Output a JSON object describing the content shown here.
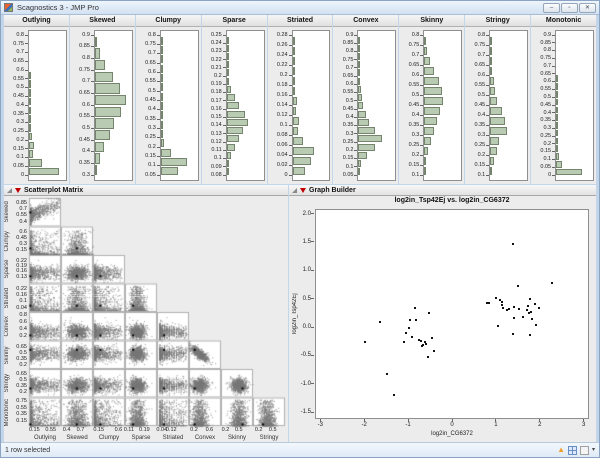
{
  "window": {
    "title": "Scagnostics 3 - JMP Pro",
    "controls": {
      "minimize": "–",
      "maximize": "▫",
      "close": "✕"
    },
    "control_icons": [
      "minimize-icon",
      "maximize-icon",
      "close-icon"
    ]
  },
  "status_bar": {
    "text": "1 row selected",
    "icons": [
      "caret-up-icon",
      "grid-view-icon",
      "dropdown-box-icon",
      "dropdown-caret-icon"
    ],
    "dropdown_caret": "▾",
    "up_arrow": "▲"
  },
  "panel_header_icons": [
    "disclosure-triangle-icon",
    "red-triangle-menu-icon"
  ],
  "colors": {
    "histogram_bar_fill": "#b9cbb2",
    "histogram_bar_stroke": "#75846d",
    "matrix_point": "#828282",
    "selected_point": "#000000",
    "graph_point": "#111111",
    "window_frame": "#c3d5e8",
    "red_triangle": "#c00000"
  },
  "chart_data": [
    {
      "type": "bar",
      "role": "histogram-strip",
      "orientation": "horizontal-bars-vertical-axis",
      "panels": [
        {
          "name": "Outlying",
          "ticks": [
            "0.8",
            "0.75",
            "0.7",
            "0.65",
            "0.6",
            "0.55",
            "0.5",
            "0.45",
            "0.4",
            "0.35",
            "0.3",
            "0.25",
            "0.2",
            "0.15",
            "0.1",
            "0.05",
            "0"
          ],
          "bar_rel_widths": [
            0,
            0,
            0,
            0,
            0.01,
            0.01,
            0.02,
            0.03,
            0.04,
            0.05,
            0.07,
            0.1,
            0.14,
            0.12,
            0.38,
            0.9
          ]
        },
        {
          "name": "Skewed",
          "ticks": [
            "0.9",
            "0.85",
            "0.8",
            "0.75",
            "0.7",
            "0.65",
            "0.6",
            "0.55",
            "0.5",
            "0.45",
            "0.4",
            "0.35",
            "0.3"
          ],
          "bar_rel_widths": [
            0.03,
            0.15,
            0.3,
            0.55,
            0.75,
            0.95,
            0.78,
            0.58,
            0.45,
            0.28,
            0.15,
            0.06
          ]
        },
        {
          "name": "Clumpy",
          "ticks": [
            "0.8",
            "0.75",
            "0.7",
            "0.65",
            "0.6",
            "0.55",
            "0.5",
            "0.45",
            "0.4",
            "0.35",
            "0.3",
            "0.25",
            "0.2",
            "0.15",
            "0.1",
            "0.05"
          ],
          "bar_rel_widths": [
            0.01,
            0.01,
            0.01,
            0.01,
            0.02,
            0.02,
            0.02,
            0.03,
            0.04,
            0.05,
            0.06,
            0.09,
            0.3,
            0.8,
            0.52
          ]
        },
        {
          "name": "Sparse",
          "ticks": [
            "0.25",
            "0.24",
            "0.23",
            "0.22",
            "0.21",
            "0.2",
            "0.19",
            "0.18",
            "0.17",
            "0.16",
            "0.15",
            "0.14",
            "0.13",
            "0.12",
            "0.11",
            "0.1",
            "0.09",
            "0.08"
          ],
          "bar_rel_widths": [
            0.01,
            0.02,
            0.02,
            0.03,
            0.05,
            0.08,
            0.14,
            0.24,
            0.38,
            0.55,
            0.65,
            0.5,
            0.36,
            0.25,
            0.13,
            0.05,
            0.02
          ]
        },
        {
          "name": "Striated",
          "ticks": [
            "0.28",
            "0.26",
            "0.24",
            "0.22",
            "0.2",
            "0.18",
            "0.16",
            "0.14",
            "0.12",
            "0.1",
            "0.08",
            "0.06",
            "0.04",
            "0.02",
            "0"
          ],
          "bar_rel_widths": [
            0.01,
            0.01,
            0.02,
            0.03,
            0.04,
            0.06,
            0.12,
            0.09,
            0.2,
            0.16,
            0.32,
            0.65,
            0.55,
            0.38
          ]
        },
        {
          "name": "Convex",
          "ticks": [
            "0.9",
            "0.85",
            "0.8",
            "0.75",
            "0.7",
            "0.65",
            "0.6",
            "0.55",
            "0.5",
            "0.45",
            "0.4",
            "0.35",
            "0.3",
            "0.25",
            "0.2",
            "0.15",
            "0.1",
            "0.05"
          ],
          "bar_rel_widths": [
            0.01,
            0.01,
            0.02,
            0.02,
            0.03,
            0.05,
            0.07,
            0.1,
            0.15,
            0.22,
            0.33,
            0.5,
            0.7,
            0.5,
            0.26,
            0.09,
            0.02
          ]
        },
        {
          "name": "Skinny",
          "ticks": [
            "0.8",
            "0.75",
            "0.7",
            "0.65",
            "0.6",
            "0.55",
            "0.5",
            "0.45",
            "0.4",
            "0.35",
            "0.3",
            "0.25",
            "0.2",
            "0.15",
            "0.1"
          ],
          "bar_rel_widths": [
            0.03,
            0.08,
            0.16,
            0.28,
            0.45,
            0.55,
            0.58,
            0.46,
            0.38,
            0.3,
            0.2,
            0.1,
            0.04,
            0.01
          ]
        },
        {
          "name": "Stringy",
          "ticks": [
            "0.8",
            "0.75",
            "0.7",
            "0.65",
            "0.6",
            "0.55",
            "0.5",
            "0.45",
            "0.4",
            "0.35",
            "0.3",
            "0.25",
            "0.2",
            "0.15",
            "0.1"
          ],
          "bar_rel_widths": [
            0.01,
            0.02,
            0.03,
            0.06,
            0.12,
            0.15,
            0.22,
            0.35,
            0.45,
            0.5,
            0.28,
            0.22,
            0.1,
            0.03
          ]
        },
        {
          "name": "Monotonic",
          "ticks": [
            "0.9",
            "0.85",
            "0.8",
            "0.75",
            "0.7",
            "0.65",
            "0.6",
            "0.55",
            "0.5",
            "0.45",
            "0.4",
            "0.35",
            "0.3",
            "0.25",
            "0.2",
            "0.15",
            "0.1",
            "0.05",
            "0"
          ],
          "bar_rel_widths": [
            0,
            0,
            0,
            0,
            0,
            0.01,
            0.01,
            0.01,
            0.02,
            0.02,
            0.03,
            0.03,
            0.04,
            0.05,
            0.06,
            0.08,
            0.18,
            0.78
          ]
        }
      ]
    },
    {
      "type": "scatter",
      "role": "scatterplot-matrix",
      "title": "Scatterplot Matrix",
      "layout": "lower-triangular 8x8, dense gray point clouds, one selected (black) observation per cell",
      "variables": [
        {
          "name": "Outlying",
          "range": [
            0.02,
            0.8
          ],
          "x_ticks": [
            "0.15",
            "0.55"
          ]
        },
        {
          "name": "Skewed",
          "range": [
            0.28,
            0.97
          ],
          "x_ticks": [
            "0.4",
            "0.7"
          ],
          "y_ticks": [
            "0.85",
            "0.7",
            "0.55",
            "0.4"
          ]
        },
        {
          "name": "Clumpy",
          "range": [
            0.02,
            0.75
          ],
          "x_ticks": [
            "0.15",
            "0.6"
          ],
          "y_ticks": [
            "0.6",
            "0.45",
            "0.3",
            "0.15"
          ]
        },
        {
          "name": "Sparse",
          "range": [
            0.09,
            0.255
          ],
          "x_ticks": [
            "0.11",
            "0.19"
          ],
          "y_ticks": [
            "0.22",
            "0.19",
            "0.16",
            "0.13"
          ]
        },
        {
          "name": "Striated",
          "range": [
            0.0,
            0.27
          ],
          "x_ticks": [
            "0.04",
            "0.12"
          ],
          "y_ticks": [
            "0.22",
            "0.16",
            "0.1",
            "0.04"
          ]
        },
        {
          "name": "Convex",
          "range": [
            0.07,
            0.9
          ],
          "x_ticks": [
            "0.2",
            "0.6"
          ],
          "y_ticks": [
            "0.8",
            "0.6",
            "0.4",
            "0.2"
          ]
        },
        {
          "name": "Skinny",
          "range": [
            0.1,
            0.82
          ],
          "x_ticks": [
            "0.2",
            "0.5"
          ],
          "y_ticks": [
            "0.65",
            "0.5",
            "0.35",
            "0.2"
          ]
        },
        {
          "name": "Stringy",
          "range": [
            0.08,
            0.76
          ],
          "x_ticks": [
            "0.2",
            "0.5"
          ],
          "y_ticks": [
            "0.65",
            "0.5",
            "0.35",
            "0.2"
          ]
        },
        {
          "name": "Monotonic",
          "range": [
            0.0,
            0.86
          ],
          "y_ticks": [
            "0.75",
            "0.55",
            "0.35",
            "0.15"
          ]
        }
      ],
      "row_names": [
        "Skewed",
        "Clumpy",
        "Sparse",
        "Striated",
        "Convex",
        "Skinny",
        "Stringy",
        "Monotonic"
      ],
      "col_names": [
        "Outlying",
        "Skewed",
        "Clumpy",
        "Sparse",
        "Striated",
        "Convex",
        "Skinny",
        "Stringy"
      ]
    },
    {
      "type": "scatter",
      "role": "graph-builder",
      "panel_title": "Graph Builder",
      "title": "log2in_Tsp42Ej vs. log2in_CG6372",
      "xlabel": "log2in_CG6372",
      "ylabel": "log2in_Tsp42Ej",
      "x_ticks": [
        "-3",
        "-2",
        "-1",
        "0",
        "1",
        "2",
        "3"
      ],
      "y_ticks": [
        "2.0",
        "1.5",
        "1.0",
        "0.5",
        "0.0",
        "-0.5",
        "-1.0",
        "-1.5"
      ],
      "xlim": [
        -3.12,
        3.12
      ],
      "ylim": [
        -1.62,
        2.08
      ],
      "points": [
        [
          -1.99,
          -0.26
        ],
        [
          -1.63,
          0.09
        ],
        [
          -1.48,
          -0.83
        ],
        [
          -1.32,
          -1.19
        ],
        [
          -1.1,
          -0.26
        ],
        [
          -1.04,
          -0.11
        ],
        [
          -0.98,
          -0.02
        ],
        [
          -0.95,
          0.12
        ],
        [
          -0.9,
          -0.18
        ],
        [
          -0.85,
          0.34
        ],
        [
          -0.81,
          0.12
        ],
        [
          -0.76,
          -0.23
        ],
        [
          -0.71,
          -0.25
        ],
        [
          -0.69,
          -0.34
        ],
        [
          -0.66,
          -0.31
        ],
        [
          -0.62,
          -0.26
        ],
        [
          -0.6,
          -0.29
        ],
        [
          -0.54,
          -0.53
        ],
        [
          -0.53,
          0.25
        ],
        [
          -0.46,
          -0.19
        ],
        [
          -0.41,
          -0.43
        ],
        [
          0.8,
          0.42
        ],
        [
          0.85,
          0.43
        ],
        [
          1.01,
          0.52
        ],
        [
          1.05,
          0.02
        ],
        [
          1.1,
          0.48
        ],
        [
          1.13,
          0.44
        ],
        [
          1.15,
          0.39
        ],
        [
          1.16,
          0.34
        ],
        [
          1.26,
          0.3
        ],
        [
          1.3,
          0.31
        ],
        [
          1.39,
          -0.12
        ],
        [
          1.4,
          1.47
        ],
        [
          1.41,
          0.36
        ],
        [
          1.41,
          0.16
        ],
        [
          1.51,
          0.72
        ],
        [
          1.53,
          0.31
        ],
        [
          1.62,
          0.18
        ],
        [
          1.7,
          0.3
        ],
        [
          1.73,
          0.37
        ],
        [
          1.76,
          0.24
        ],
        [
          1.77,
          -0.14
        ],
        [
          1.78,
          0.5
        ],
        [
          1.81,
          0.27
        ],
        [
          1.83,
          0.14
        ],
        [
          1.88,
          0.41
        ],
        [
          1.91,
          0.03
        ],
        [
          1.99,
          0.33
        ],
        [
          2.28,
          0.77
        ]
      ]
    }
  ]
}
